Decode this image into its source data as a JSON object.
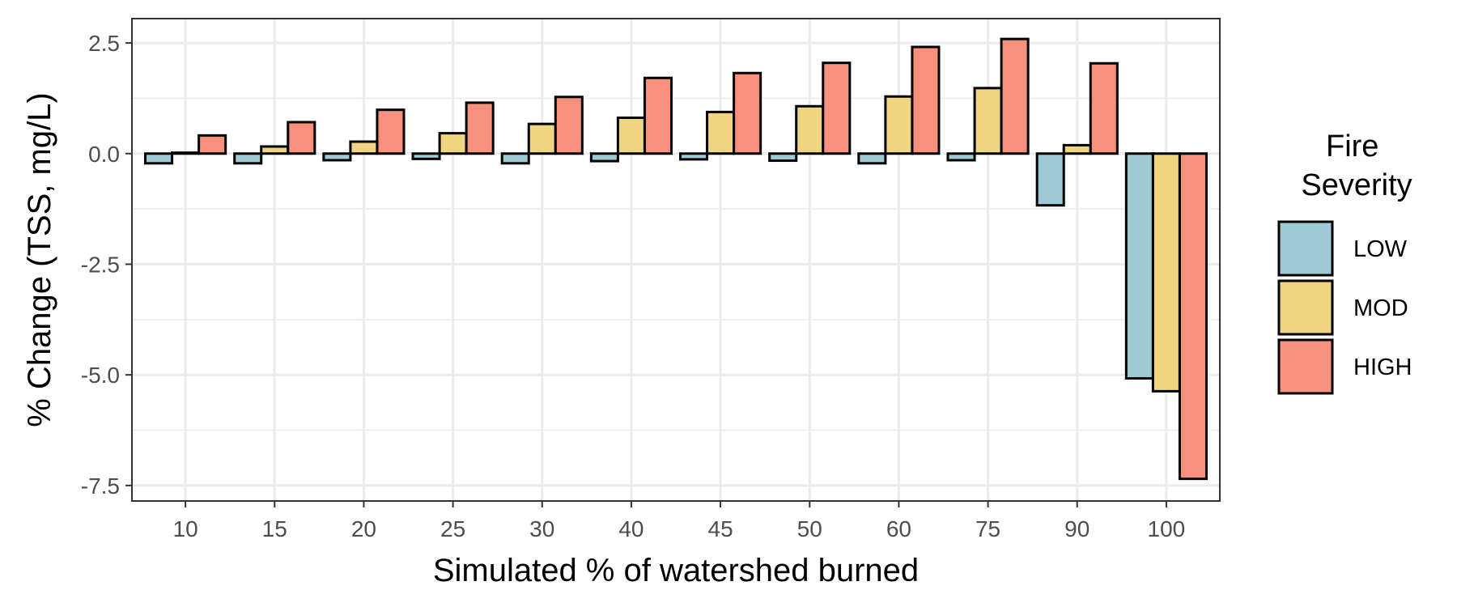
{
  "chart_data": {
    "type": "bar",
    "xlabel": "Simulated % of watershed burned",
    "ylabel": "% Change (TSS, mg/L)",
    "categories": [
      "10",
      "15",
      "20",
      "25",
      "30",
      "40",
      "45",
      "50",
      "60",
      "75",
      "90",
      "100"
    ],
    "series": [
      {
        "name": "LOW",
        "color": "#9ECAD6",
        "values": [
          -0.22,
          -0.22,
          -0.15,
          -0.12,
          -0.22,
          -0.17,
          -0.13,
          -0.16,
          -0.22,
          -0.15,
          -1.17,
          -5.08
        ]
      },
      {
        "name": "MOD",
        "color": "#F0D580",
        "values": [
          0.02,
          0.16,
          0.27,
          0.46,
          0.67,
          0.81,
          0.94,
          1.07,
          1.29,
          1.48,
          0.19,
          -5.37
        ]
      },
      {
        "name": "HIGH",
        "color": "#F8907E",
        "values": [
          0.41,
          0.71,
          0.99,
          1.15,
          1.28,
          1.71,
          1.82,
          2.05,
          2.41,
          2.59,
          2.04,
          -7.35
        ]
      }
    ],
    "ylim": [
      -7.85,
      3.05
    ],
    "yticks": [
      2.5,
      0.0,
      -2.5,
      -5.0,
      -7.5
    ],
    "ytick_labels": [
      "2.5",
      "0.0",
      "-2.5",
      "-5.0",
      "-7.5"
    ],
    "grid": true,
    "legend": {
      "title_lines": [
        "Fire",
        "Severity"
      ],
      "placement": "right"
    }
  }
}
